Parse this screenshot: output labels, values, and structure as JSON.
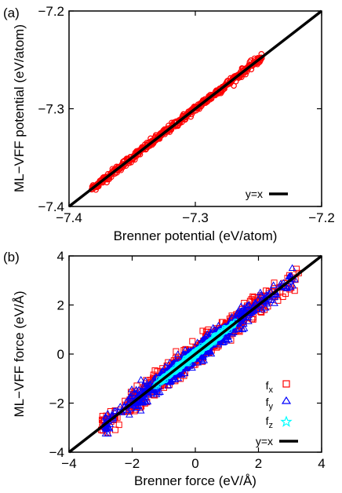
{
  "chart_data": [
    {
      "panel_label": "(a)",
      "type": "scatter",
      "xlabel": "Brenner potential (eV/atom)",
      "ylabel": "ML−VFF potential (eV/atom)",
      "xlim": [
        -7.4,
        -7.2
      ],
      "ylim": [
        -7.4,
        -7.2
      ],
      "xticks": [
        -7.4,
        -7.3,
        -7.2
      ],
      "yticks": [
        -7.4,
        -7.3,
        -7.2
      ],
      "xtick_labels": [
        "−7.4",
        "−7.3",
        "−7.2"
      ],
      "ytick_labels": [
        "−7.4",
        "−7.3",
        "−7.2"
      ],
      "legend_position": "bottom-right",
      "legend": [
        "y=x"
      ],
      "colors": {
        "points": "#ff0000",
        "line": "#000000"
      },
      "series": [
        {
          "kind": "points",
          "marker": "circle",
          "x_range": [
            -7.382,
            -7.247
          ],
          "spread": 0.002
        },
        {
          "kind": "line",
          "name": "y=x",
          "x": [
            -7.4,
            -7.2
          ],
          "y": [
            -7.4,
            -7.2
          ]
        }
      ]
    },
    {
      "panel_label": "(b)",
      "type": "scatter",
      "xlabel": "Brenner force (eV/Å)",
      "ylabel": "ML−VFF force (eV/Å)",
      "xlim": [
        -4,
        4
      ],
      "ylim": [
        -4,
        4
      ],
      "xticks": [
        -4,
        -2,
        0,
        2,
        4
      ],
      "yticks": [
        -4,
        -2,
        0,
        2,
        4
      ],
      "xtick_labels": [
        "−4",
        "−2",
        "0",
        "2",
        "4"
      ],
      "ytick_labels": [
        "−4",
        "−2",
        "0",
        "2",
        "4"
      ],
      "legend_position": "bottom-right",
      "legend": [
        "fx",
        "fy",
        "fz",
        "y=x"
      ],
      "colors": {
        "fx": "#ff0000",
        "fy": "#0000ff",
        "fz": "#00ffff",
        "line": "#000000"
      },
      "series": [
        {
          "kind": "points",
          "name": "fx",
          "marker": "square",
          "x_range": [
            -3.0,
            3.3
          ],
          "spread": 0.22
        },
        {
          "kind": "points",
          "name": "fy",
          "marker": "triangle",
          "x_range": [
            -2.9,
            3.2
          ],
          "spread": 0.2
        },
        {
          "kind": "points",
          "name": "fz",
          "marker": "star",
          "x_range": [
            -1.3,
            1.3
          ],
          "spread": 0.06
        },
        {
          "kind": "line",
          "name": "y=x",
          "x": [
            -4,
            4
          ],
          "y": [
            -4,
            4
          ]
        }
      ]
    }
  ]
}
